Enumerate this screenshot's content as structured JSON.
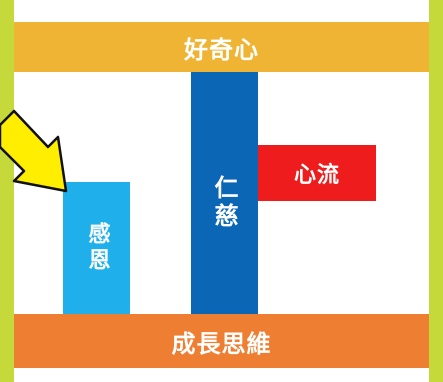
{
  "diagram": {
    "top_bar": {
      "label": "好奇心"
    },
    "bottom_bar": {
      "label": "成長思維"
    },
    "pillar_left": {
      "label": "感恩"
    },
    "pillar_center": {
      "label": "仁慈"
    },
    "box_right": {
      "label": "心流"
    }
  },
  "colors": {
    "background": "#c6d93a",
    "top_bar": "#f0b434",
    "bottom_bar": "#ee7f32",
    "pillar_left": "#1fb0ec",
    "pillar_center": "#0b66b6",
    "box_right": "#ee1c1c",
    "arrow_fill": "#ffee00"
  },
  "icons": {
    "pointer": "yellow-arrow-icon"
  }
}
